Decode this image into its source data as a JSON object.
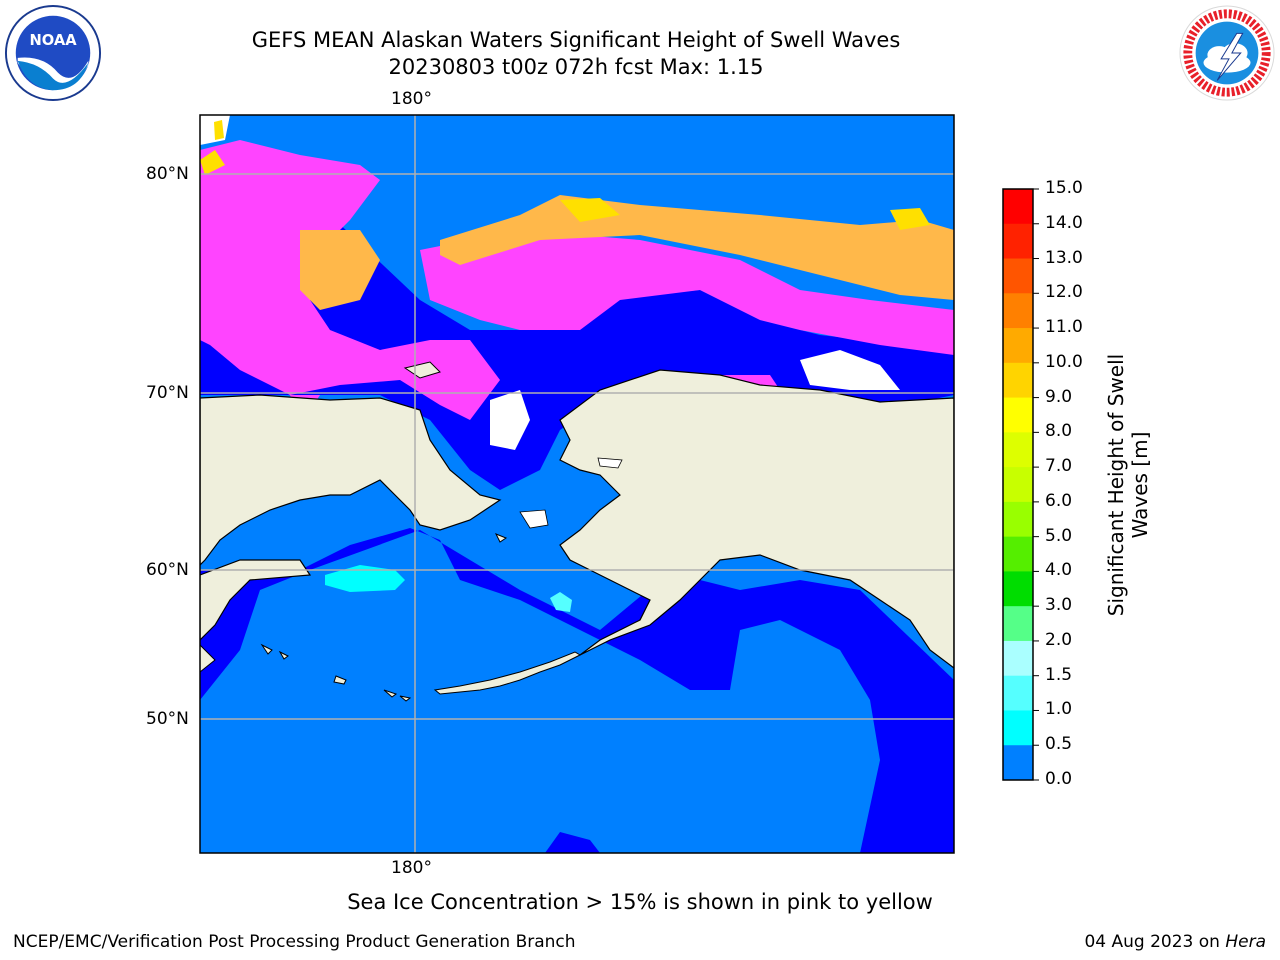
{
  "header": {
    "title_line1": "GEFS MEAN Alaskan Waters Significant Height of Swell Waves",
    "title_line2": "20230803 t00z 072h fcst   Max: 1.15"
  },
  "map": {
    "lon_label_top": "180°",
    "lon_label_bottom": "180°",
    "lat_labels": [
      "80°N",
      "70°N",
      "60°N",
      "50°N"
    ],
    "colors": {
      "land": "#efefdc",
      "coast": "#000000",
      "grid": "#b0b0b0",
      "wave_low": "#0000ff",
      "wave_mid": "#0080ff",
      "wave_1": "#00ffff",
      "wave_2": "#66ffee",
      "ice_pink": "#ff44ff",
      "ice_orange": "#ffb84a",
      "ice_yellow": "#ffe000"
    }
  },
  "colorbar": {
    "ticks": [
      "15.0",
      "14.0",
      "13.0",
      "12.0",
      "11.0",
      "10.0",
      "9.0",
      "8.0",
      "7.0",
      "6.0",
      "5.0",
      "4.0",
      "3.0",
      "2.0",
      "1.5",
      "1.0",
      "0.5",
      "0.0"
    ],
    "colors": [
      "#ff0000",
      "#ff2200",
      "#ff5500",
      "#ff8000",
      "#ffaa00",
      "#ffd400",
      "#ffff00",
      "#ddff00",
      "#c8ff00",
      "#99ff00",
      "#55ee00",
      "#00dd00",
      "#55ff88",
      "#aaffff",
      "#55ffff",
      "#00ffff",
      "#0080ff",
      "#0000ff"
    ],
    "label": "Significant Height of Swell Waves [m]"
  },
  "caption": "Sea Ice Concentration > 15% is shown in pink to yellow",
  "footer": {
    "left": "NCEP/EMC/Verification Post Processing Product Generation Branch",
    "right_date": "04 Aug 2023 on",
    "right_host": "Hera"
  },
  "logos": {
    "noaa_text": "NOAA"
  }
}
